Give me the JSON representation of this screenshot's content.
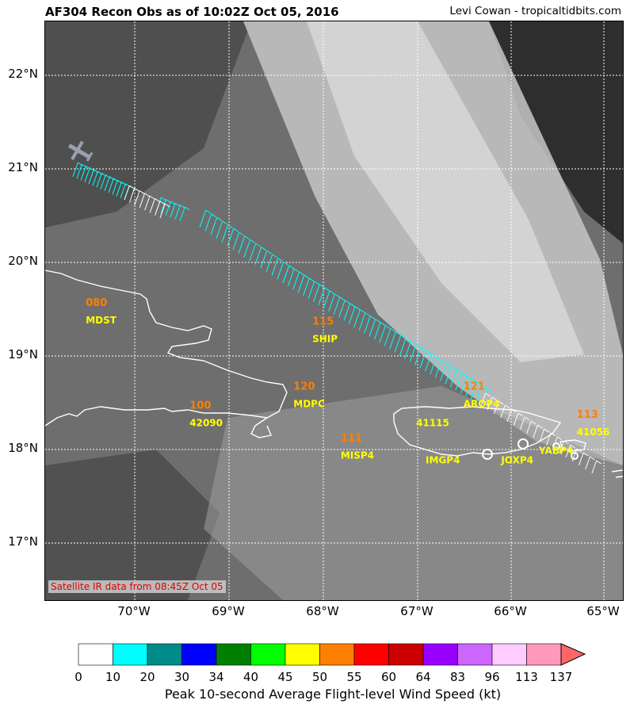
{
  "header": {
    "title": "AF304 Recon Obs as of 10:02Z Oct 05, 2016",
    "credit": "Levi Cowan - tropicaltidbits.com"
  },
  "map": {
    "lat_labels": [
      "22°N",
      "21°N",
      "20°N",
      "19°N",
      "18°N",
      "17°N"
    ],
    "lon_labels": [
      "70°W",
      "69°W",
      "68°W",
      "67°W",
      "66°W",
      "65°W"
    ],
    "satellite_note": "Satellite IR data from 08:45Z Oct 05",
    "extent": {
      "lon_min": -70.93,
      "lon_max": -64.81,
      "lat_min": 16.4,
      "lat_max": 22.6
    },
    "stations": [
      {
        "id": "MDST",
        "value": "080",
        "lon": -70.5,
        "lat": 19.4
      },
      {
        "id": "SHIP",
        "value": "115",
        "lon": -68.1,
        "lat": 19.2
      },
      {
        "id": "42090",
        "value": "100",
        "lon": -69.4,
        "lat": 18.3
      },
      {
        "id": "MDPC",
        "value": "120",
        "lon": -68.3,
        "lat": 18.5
      },
      {
        "id": "MISP4",
        "value": "111",
        "lon": -67.8,
        "lat": 17.95
      },
      {
        "id": "41115",
        "value": "",
        "lon": -67.0,
        "lat": 18.3
      },
      {
        "id": "AROP4",
        "value": "121",
        "lon": -66.5,
        "lat": 18.5
      },
      {
        "id": "IMGP4",
        "value": "",
        "lon": -66.9,
        "lat": 17.9
      },
      {
        "id": "JOXP4",
        "value": "",
        "lon": -66.1,
        "lat": 17.9
      },
      {
        "id": "YABP4",
        "value": "",
        "lon": -65.7,
        "lat": 18.0
      },
      {
        "id": "41056",
        "value": "113",
        "lon": -65.3,
        "lat": 18.2
      }
    ]
  },
  "colorbar": {
    "ticks": [
      "0",
      "10",
      "20",
      "30",
      "34",
      "40",
      "45",
      "50",
      "55",
      "60",
      "64",
      "83",
      "96",
      "113",
      "137"
    ],
    "colors": [
      "#ffffff",
      "#00ffff",
      "#008b8b",
      "#0000ff",
      "#008000",
      "#00ff00",
      "#ffff00",
      "#ff8000",
      "#ff0000",
      "#cc0000",
      "#9900ff",
      "#cc66ff",
      "#ffccff",
      "#ff99bb",
      "#ff6666"
    ],
    "label": "Peak 10-second Average Flight-level Wind Speed (kt)"
  }
}
